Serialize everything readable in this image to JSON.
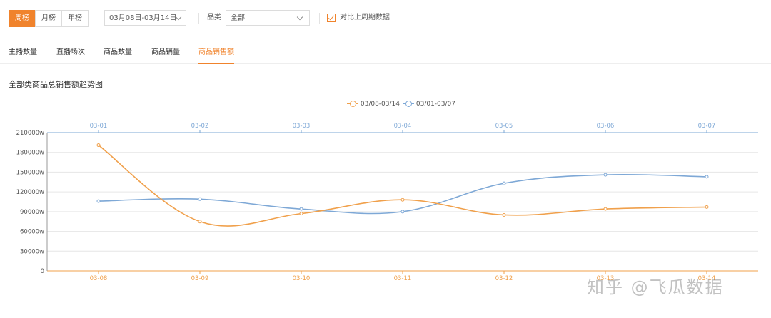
{
  "toolbar": {
    "period_tabs": [
      "周榜",
      "月榜",
      "年榜"
    ],
    "active_period": "周榜",
    "date_range": "03月08日-03月14日",
    "category_label": "品类",
    "category_value": "全部",
    "compare_label": "对比上周期数据",
    "compare_checked": true
  },
  "metric_tabs": [
    "主播数量",
    "直播场次",
    "商品数量",
    "商品销量",
    "商品销售额"
  ],
  "active_metric": "商品销售额",
  "section_title": "全部类商品总销售额趋势图",
  "watermark": "知乎 @飞瓜数据",
  "colors": {
    "accent": "#f0832c",
    "current_series": "#f0a04b",
    "previous_series": "#7ea8d6"
  },
  "icons": {
    "dropdown": "chevron-down-icon",
    "checkbox": "checkbox-checked-icon"
  },
  "chart_data": {
    "type": "line",
    "title": "全部类商品总销售额趋势图",
    "x_current": [
      "03-08",
      "03-09",
      "03-10",
      "03-11",
      "03-12",
      "03-13",
      "03-14"
    ],
    "x_previous": [
      "03-01",
      "03-02",
      "03-03",
      "03-04",
      "03-05",
      "03-06",
      "03-07"
    ],
    "y_ticks": [
      "0",
      "30000w",
      "60000w",
      "90000w",
      "120000w",
      "150000w",
      "180000w",
      "210000w"
    ],
    "ylim": [
      0,
      210000
    ],
    "y_unit": "w",
    "grid": true,
    "legend_position": "top-center",
    "series": [
      {
        "name": "03/08-03/14",
        "values": [
          191000,
          75000,
          87000,
          108000,
          85000,
          94000,
          97000
        ]
      },
      {
        "name": "03/01-03/07",
        "values": [
          106000,
          109000,
          94000,
          90000,
          133000,
          146000,
          143000
        ]
      }
    ]
  }
}
